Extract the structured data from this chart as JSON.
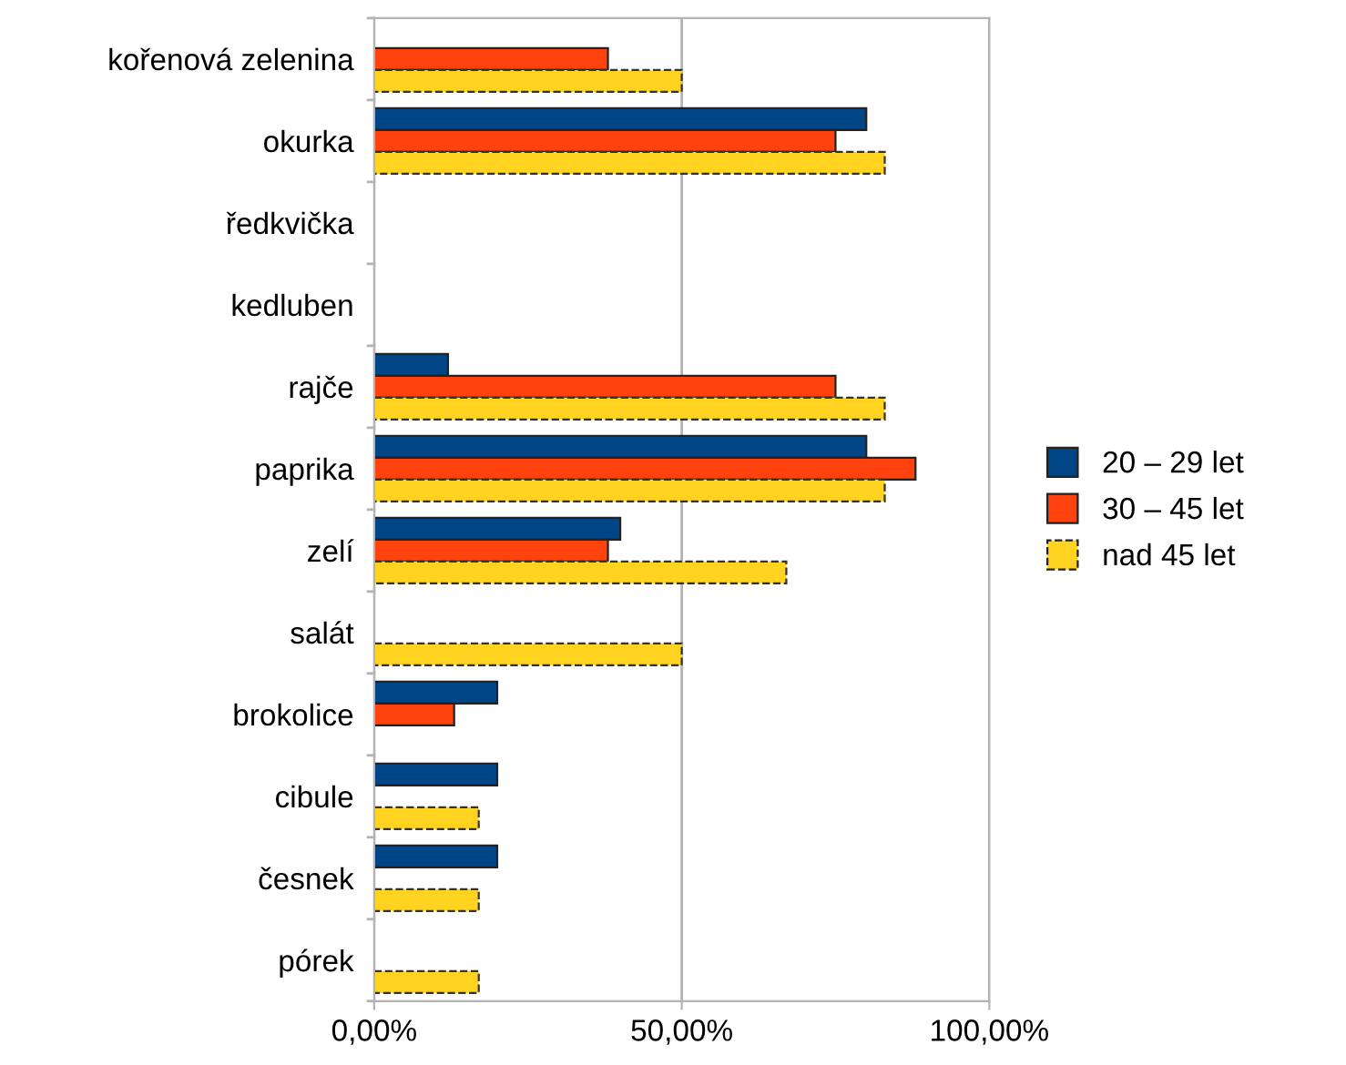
{
  "chart_data": {
    "type": "bar",
    "orientation": "horizontal",
    "categories": [
      "kořenová zelenina",
      "okurka",
      "ředkvička",
      "kedluben",
      "rajče",
      "paprika",
      "zelí",
      "salát",
      "brokolice",
      "cibule",
      "česnek",
      "pórek"
    ],
    "series": [
      {
        "name": "20 – 29 let",
        "color": "#004586",
        "values": [
          0,
          80,
          0,
          0,
          12,
          80,
          40,
          0,
          20,
          20,
          20,
          0
        ]
      },
      {
        "name": "30 – 45 let",
        "color": "#ff420e",
        "values": [
          38,
          75,
          0,
          0,
          75,
          88,
          38,
          0,
          13,
          0,
          0,
          0
        ]
      },
      {
        "name": "nad 45 let",
        "color": "#ffd320",
        "line_style": "dashed",
        "values": [
          50,
          83,
          0,
          0,
          83,
          83,
          67,
          50,
          0,
          17,
          17,
          17
        ]
      }
    ],
    "xlim": [
      0,
      100
    ],
    "xticks": [
      {
        "value": 0,
        "label": "0,00%"
      },
      {
        "value": 50,
        "label": "50,00%"
      },
      {
        "value": 100,
        "label": "100,00%"
      }
    ],
    "grid": "x",
    "legend": "right"
  }
}
